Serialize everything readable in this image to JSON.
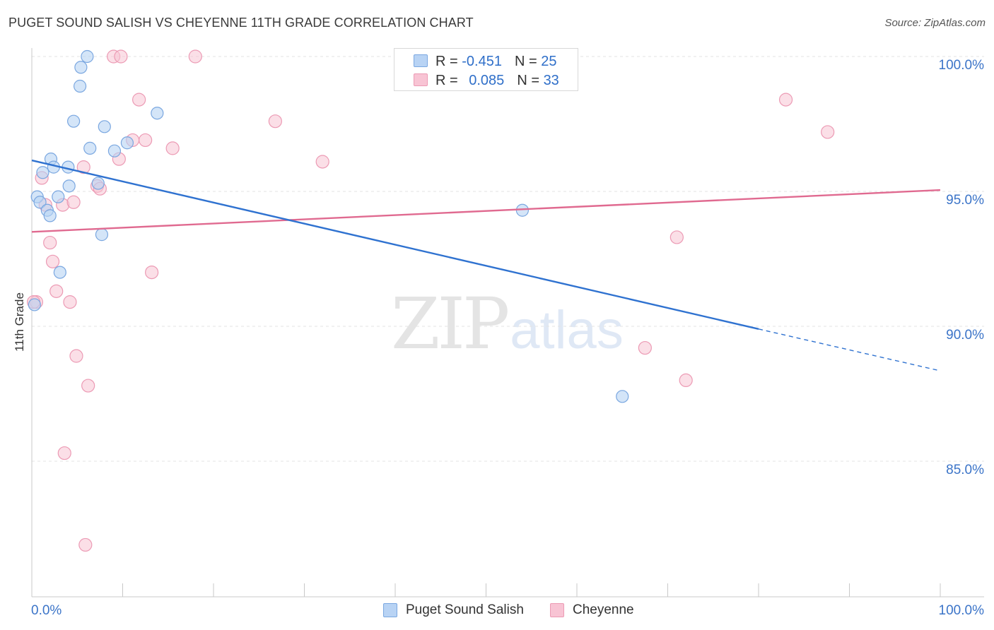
{
  "title": "PUGET SOUND SALISH VS CHEYENNE 11TH GRADE CORRELATION CHART",
  "source": "Source: ZipAtlas.com",
  "watermark": {
    "zip": "ZIP",
    "atlas": "atlas"
  },
  "colors": {
    "blue_fill": "#b8d3f4",
    "blue_stroke": "#7aa7e0",
    "blue_line": "#2f72d0",
    "pink_fill": "#f8c4d4",
    "pink_stroke": "#ec9ab4",
    "pink_line": "#e06a90",
    "tick_label": "#3b74c8",
    "grid": "#e3e3e3"
  },
  "legend": {
    "r_label": "R = ",
    "n_label": "N = ",
    "rows": [
      {
        "r": "-0.451",
        "n": "25"
      },
      {
        "r": "0.085",
        "n": "33"
      }
    ]
  },
  "chart_data": {
    "type": "scatter",
    "title": "PUGET SOUND SALISH VS CHEYENNE 11TH GRADE CORRELATION CHART",
    "xlabel": "",
    "ylabel": "11th Grade",
    "xlim": [
      0,
      100
    ],
    "ylim": [
      80.5,
      100.5
    ],
    "x_tick_labels": [
      "0.0%",
      "100.0%"
    ],
    "y_ticks": [
      85,
      90,
      95,
      100
    ],
    "y_tick_labels": [
      "85.0%",
      "90.0%",
      "95.0%",
      "100.0%"
    ],
    "grid": true,
    "legend_position": "top-center",
    "series": [
      {
        "name": "Puget Sound Salish",
        "r": -0.451,
        "n": 25,
        "points": [
          [
            6.1,
            100.0
          ],
          [
            5.4,
            99.6
          ],
          [
            5.3,
            98.9
          ],
          [
            13.8,
            97.9
          ],
          [
            4.6,
            97.6
          ],
          [
            8.0,
            97.4
          ],
          [
            10.5,
            96.8
          ],
          [
            6.4,
            96.6
          ],
          [
            9.1,
            96.5
          ],
          [
            2.1,
            96.2
          ],
          [
            4.0,
            95.9
          ],
          [
            2.4,
            95.9
          ],
          [
            1.2,
            95.7
          ],
          [
            7.3,
            95.3
          ],
          [
            4.1,
            95.2
          ],
          [
            0.6,
            94.8
          ],
          [
            2.9,
            94.8
          ],
          [
            0.9,
            94.6
          ],
          [
            1.7,
            94.3
          ],
          [
            2.0,
            94.1
          ],
          [
            54.0,
            94.3
          ],
          [
            7.7,
            93.4
          ],
          [
            3.1,
            92.0
          ],
          [
            0.3,
            90.8
          ],
          [
            65.0,
            87.4
          ]
        ],
        "trend": {
          "x0": 0,
          "y0": 96.15,
          "x1": 80,
          "y1": 89.9,
          "dashed_to_x": 100,
          "dashed_to_y": 88.35
        }
      },
      {
        "name": "Cheyenne",
        "r": 0.085,
        "n": 33,
        "points": [
          [
            9.0,
            100.0
          ],
          [
            9.8,
            100.0
          ],
          [
            18.0,
            100.0
          ],
          [
            11.8,
            98.4
          ],
          [
            83.0,
            98.4
          ],
          [
            26.8,
            97.6
          ],
          [
            87.6,
            97.2
          ],
          [
            11.1,
            96.9
          ],
          [
            12.5,
            96.9
          ],
          [
            15.5,
            96.6
          ],
          [
            9.6,
            96.2
          ],
          [
            32.0,
            96.1
          ],
          [
            5.7,
            95.9
          ],
          [
            1.1,
            95.5
          ],
          [
            7.2,
            95.2
          ],
          [
            7.5,
            95.1
          ],
          [
            1.5,
            94.5
          ],
          [
            3.4,
            94.5
          ],
          [
            4.6,
            94.6
          ],
          [
            71.0,
            93.3
          ],
          [
            2.0,
            93.1
          ],
          [
            2.3,
            92.4
          ],
          [
            13.2,
            92.0
          ],
          [
            2.7,
            91.3
          ],
          [
            0.5,
            90.9
          ],
          [
            0.2,
            90.9
          ],
          [
            4.2,
            90.9
          ],
          [
            67.5,
            89.2
          ],
          [
            4.9,
            88.9
          ],
          [
            72.0,
            88.0
          ],
          [
            6.2,
            87.8
          ],
          [
            3.6,
            85.3
          ],
          [
            5.9,
            81.9
          ]
        ],
        "trend": {
          "x0": 0,
          "y0": 93.5,
          "x1": 100,
          "y1": 95.05
        }
      }
    ]
  }
}
